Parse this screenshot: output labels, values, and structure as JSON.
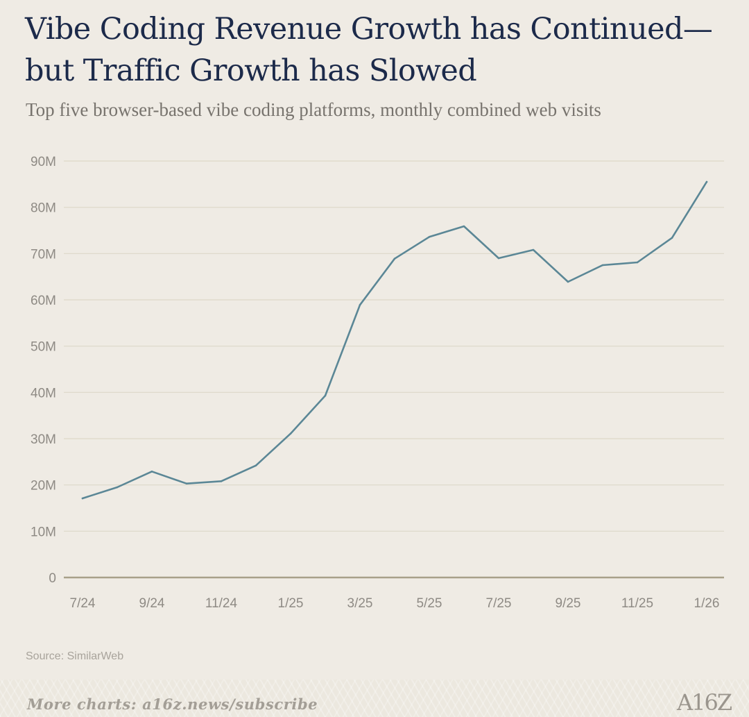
{
  "chart_data": {
    "type": "line",
    "title": "Vibe Coding Revenue Growth has Continued—but Traffic Growth has Slowed",
    "subtitle": "Top five browser-based vibe coding platforms, monthly combined web visits",
    "xlabel": "",
    "ylabel": "",
    "ylim": [
      0,
      90
    ],
    "y_unit": "M",
    "y_ticks": [
      "0",
      "10M",
      "20M",
      "30M",
      "40M",
      "50M",
      "60M",
      "70M",
      "80M",
      "90M"
    ],
    "x_tick_labels": [
      "7/24",
      "9/24",
      "11/24",
      "1/25",
      "3/25",
      "5/25",
      "7/25",
      "9/25",
      "11/25",
      "1/26"
    ],
    "grid": true,
    "categories": [
      "7/24",
      "8/24",
      "9/24",
      "10/24",
      "11/24",
      "12/24",
      "1/25",
      "2/25",
      "3/25",
      "4/25",
      "5/25",
      "6/25",
      "7/25",
      "8/25",
      "9/25",
      "10/25",
      "11/25",
      "12/25",
      "1/26"
    ],
    "series": [
      {
        "name": "Monthly combined web visits",
        "color": "#5b8796",
        "values": [
          17.1,
          19.5,
          22.9,
          20.3,
          20.8,
          24.2,
          31.1,
          39.3,
          58.9,
          68.9,
          73.6,
          75.9,
          69.0,
          70.8,
          63.9,
          67.5,
          68.1,
          73.4,
          85.5
        ]
      }
    ]
  },
  "source": "Source: SimilarWeb",
  "footer": {
    "link_text": "More charts: a16z.news/subscribe",
    "logo_text": "A16Z"
  },
  "colors": {
    "background": "#efebe4",
    "title": "#1c2a4a",
    "line": "#5b8796",
    "grid": "#ddd8c8",
    "baseline": "#a8a089",
    "tick_text": "#8e8a84"
  }
}
